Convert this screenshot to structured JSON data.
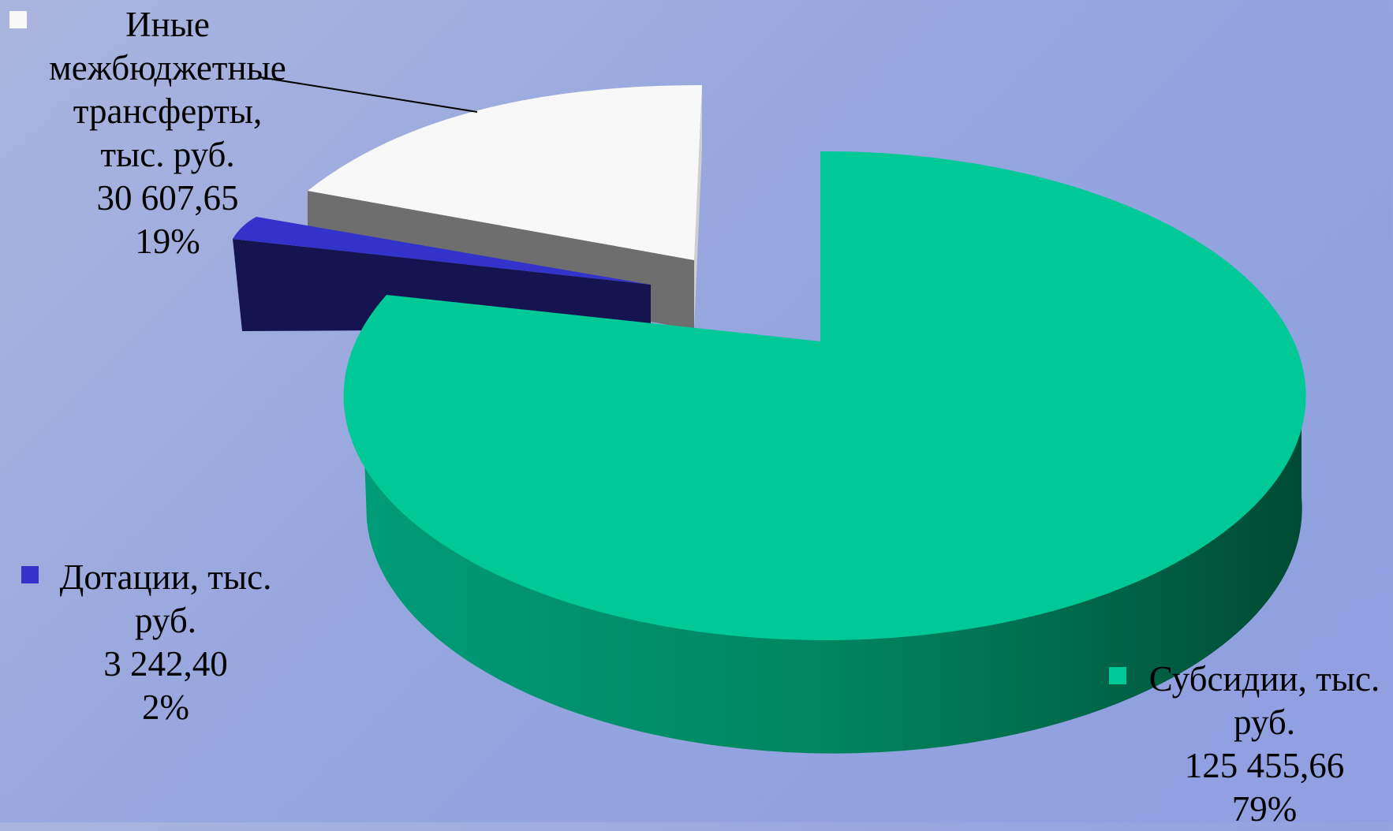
{
  "chart_data": {
    "type": "pie",
    "three_d": true,
    "slices": [
      {
        "category": "Иные межбюджетные трансферты, тыс. руб.",
        "value": 30607.65,
        "value_label": "30 607,65",
        "percent_label": "19%",
        "color": "#f8f8f8"
      },
      {
        "category": "Дотации, тыс. руб.",
        "value": 3242.4,
        "value_label": "3 242,40",
        "percent_label": "2%",
        "color": "#3333cc"
      },
      {
        "category": "Субсидии, тыс. руб.",
        "value": 125455.66,
        "value_label": "125 455,66",
        "percent_label": "79%",
        "color": "#00c896"
      }
    ],
    "legend": "none"
  },
  "labels": {
    "inye": {
      "lines": [
        "Иные",
        "межбюджетные",
        "трансферты,",
        "тыс. руб."
      ],
      "value": "30 607,65",
      "percent": "19%"
    },
    "dotacii": {
      "lines": [
        "Дотации, тыс.",
        "руб."
      ],
      "value": "3 242,40",
      "percent": "2%"
    },
    "subsidii": {
      "lines": [
        "Субсидии, тыс.",
        "руб."
      ],
      "value": "125 455,66",
      "percent": "79%"
    }
  }
}
